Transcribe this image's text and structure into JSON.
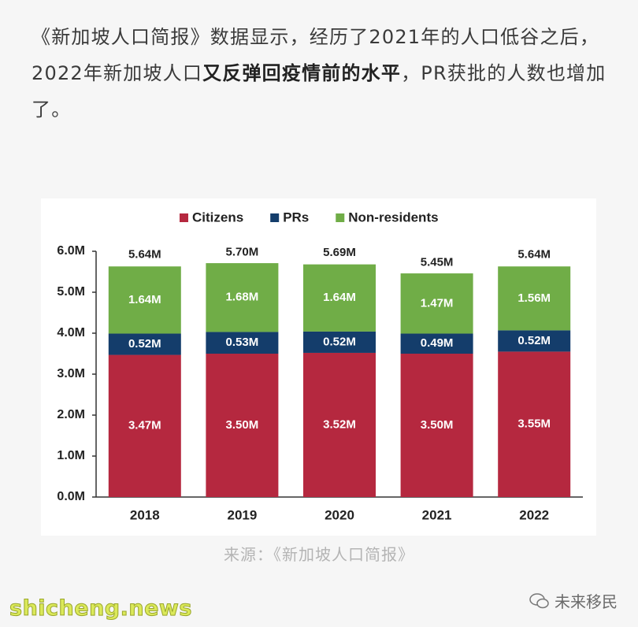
{
  "article": {
    "paragraph": {
      "line1": "《新加坡人口简报》数据显示，经历了2021年的人口低谷之后，",
      "before_bold": "2022年新加坡人口",
      "bold": "又反弹回疫情前的水平",
      "after_bold": "，PR获批的人数也增加了。"
    },
    "caption": "来源：《新加坡人口简报》",
    "watermark": "shicheng.news",
    "account": "未来移民"
  },
  "chart_data": {
    "type": "stacked_bar",
    "categories": [
      "2018",
      "2019",
      "2020",
      "2021",
      "2022"
    ],
    "series": [
      {
        "name": "Citizens",
        "color": "#b5283f",
        "values": [
          3.47,
          3.5,
          3.52,
          3.5,
          3.55
        ],
        "value_labels": [
          "3.47M",
          "3.50M",
          "3.52M",
          "3.50M",
          "3.55M"
        ]
      },
      {
        "name": "PRs",
        "color": "#143d6b",
        "values": [
          0.52,
          0.53,
          0.52,
          0.49,
          0.52
        ],
        "value_labels": [
          "0.52M",
          "0.53M",
          "0.52M",
          "0.49M",
          "0.52M"
        ]
      },
      {
        "name": "Non-residents",
        "color": "#70ad47",
        "values": [
          1.64,
          1.68,
          1.64,
          1.47,
          1.56
        ],
        "value_labels": [
          "1.64M",
          "1.68M",
          "1.64M",
          "1.47M",
          "1.56M"
        ]
      }
    ],
    "totals": {
      "values": [
        5.64,
        5.7,
        5.69,
        5.45,
        5.64
      ],
      "value_labels": [
        "5.64M",
        "5.70M",
        "5.69M",
        "5.45M",
        "5.64M"
      ]
    },
    "ylim": [
      0,
      6
    ],
    "yticks": [
      {
        "value": 0,
        "label": "0.0M"
      },
      {
        "value": 1,
        "label": "1.0M"
      },
      {
        "value": 2,
        "label": "2.0M"
      },
      {
        "value": 3,
        "label": "3.0M"
      },
      {
        "value": 4,
        "label": "4.0M"
      },
      {
        "value": 5,
        "label": "5.0M"
      },
      {
        "value": 6,
        "label": "6.0M"
      }
    ],
    "legend": "top"
  }
}
